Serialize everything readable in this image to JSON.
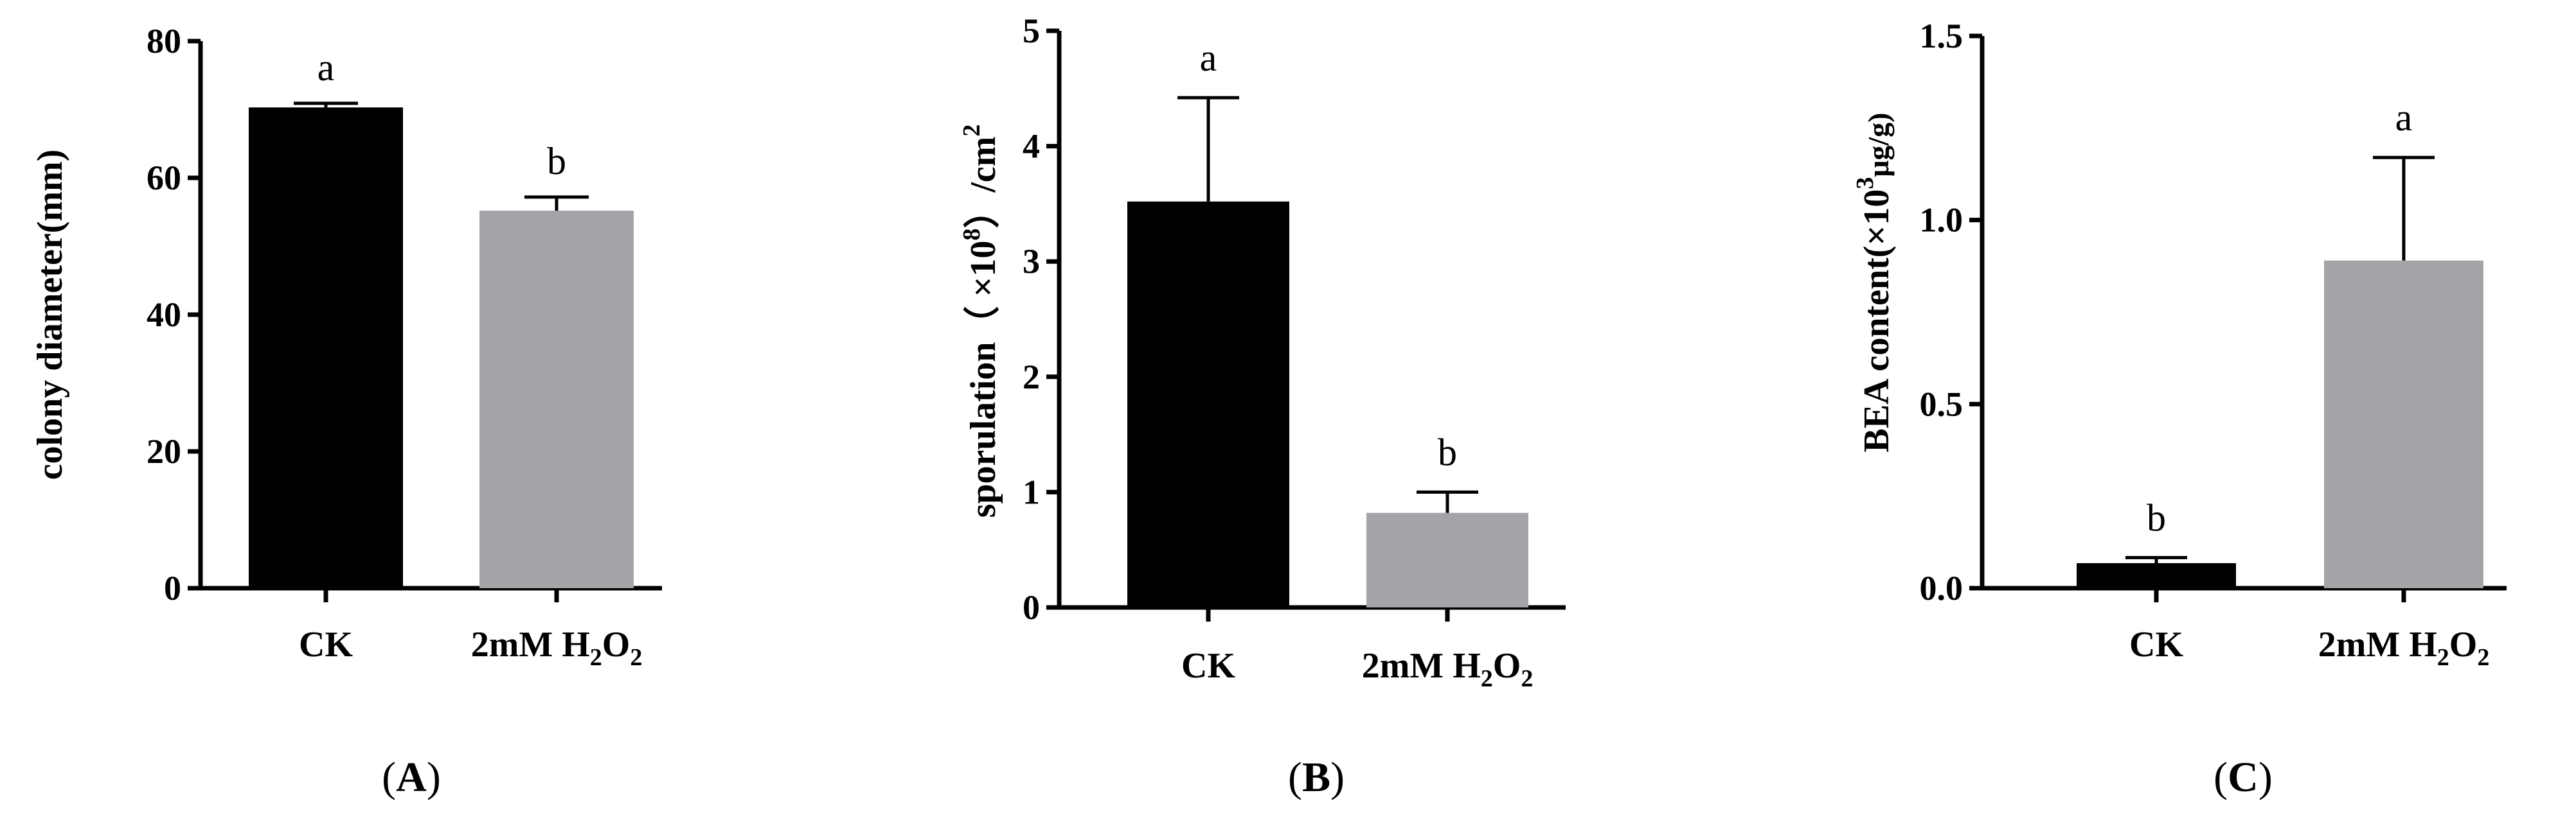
{
  "chart_data": [
    {
      "type": "bar",
      "panel_label": "A",
      "categories": [
        "CK",
        "2mM H2O2"
      ],
      "values": [
        70.3,
        55.2
      ],
      "errors": [
        0.6,
        2.0
      ],
      "significance": [
        "a",
        "b"
      ],
      "colors": [
        "#000000",
        "#a3a3a8"
      ],
      "ylabel": "colony diameter(mm)",
      "ylim": [
        0,
        80
      ],
      "yticks": [
        0,
        20,
        40,
        60,
        80
      ],
      "ytick_labels": [
        "0",
        "20",
        "40",
        "60",
        "80"
      ],
      "grid": false,
      "legend": "none"
    },
    {
      "type": "bar",
      "panel_label": "B",
      "categories": [
        "CK",
        "2mM H2O2"
      ],
      "values": [
        3.52,
        0.82
      ],
      "errors": [
        0.9,
        0.18
      ],
      "significance": [
        "a",
        "b"
      ],
      "colors": [
        "#000000",
        "#a3a3a8"
      ],
      "ylabel": "sporulation（ ×10^8）/cm^2",
      "ylim": [
        0,
        5
      ],
      "yticks": [
        0,
        1,
        2,
        3,
        4,
        5
      ],
      "ytick_labels": [
        "0",
        "1",
        "2",
        "3",
        "4",
        "5"
      ],
      "grid": false,
      "legend": "none"
    },
    {
      "type": "bar",
      "panel_label": "C",
      "categories": [
        "CK",
        "2mM H2O2"
      ],
      "values": [
        0.068,
        0.89
      ],
      "errors": [
        0.015,
        0.28
      ],
      "significance": [
        "b",
        "a"
      ],
      "colors": [
        "#000000",
        "#a3a3a8"
      ],
      "ylabel": "BEA content(×10^3μg/g)",
      "ylim": [
        0,
        1.5
      ],
      "yticks": [
        0,
        0.5,
        1.0,
        1.5
      ],
      "ytick_labels": [
        "0.0",
        "0.5",
        "1.0",
        "1.5"
      ],
      "grid": false,
      "legend": "none"
    }
  ],
  "texts": {
    "panel_a": {
      "cat1": "CK",
      "cat2_main": "2mM H",
      "cat2_sub1": "2",
      "cat2_mid": "O",
      "cat2_sub2": "2",
      "ylabel": "colony diameter(mm)",
      "sig1": "a",
      "sig2": "b",
      "paren_open": "(",
      "letter": "A",
      "paren_close": ")"
    },
    "panel_b": {
      "cat1": "CK",
      "cat2_main": "2mM H",
      "cat2_sub1": "2",
      "cat2_mid": "O",
      "cat2_sub2": "2",
      "ylab_main": "sporulation（ ×10",
      "ylab_sup1": "8",
      "ylab_mid": "）/cm",
      "ylab_sup2": "2",
      "sig1": "a",
      "sig2": "b",
      "paren_open": "(",
      "letter": "B",
      "paren_close": ")"
    },
    "panel_c": {
      "cat1": "CK",
      "cat2_main": "2mM H",
      "cat2_sub1": "2",
      "cat2_mid": "O",
      "cat2_sub2": "2",
      "ylab_main": "BEA content(×10",
      "ylab_sup": "3",
      "ylab_unit": "μg/g)",
      "sig1": "b",
      "sig2": "a",
      "paren_open": "(",
      "letter": "C",
      "paren_close": ")"
    }
  }
}
